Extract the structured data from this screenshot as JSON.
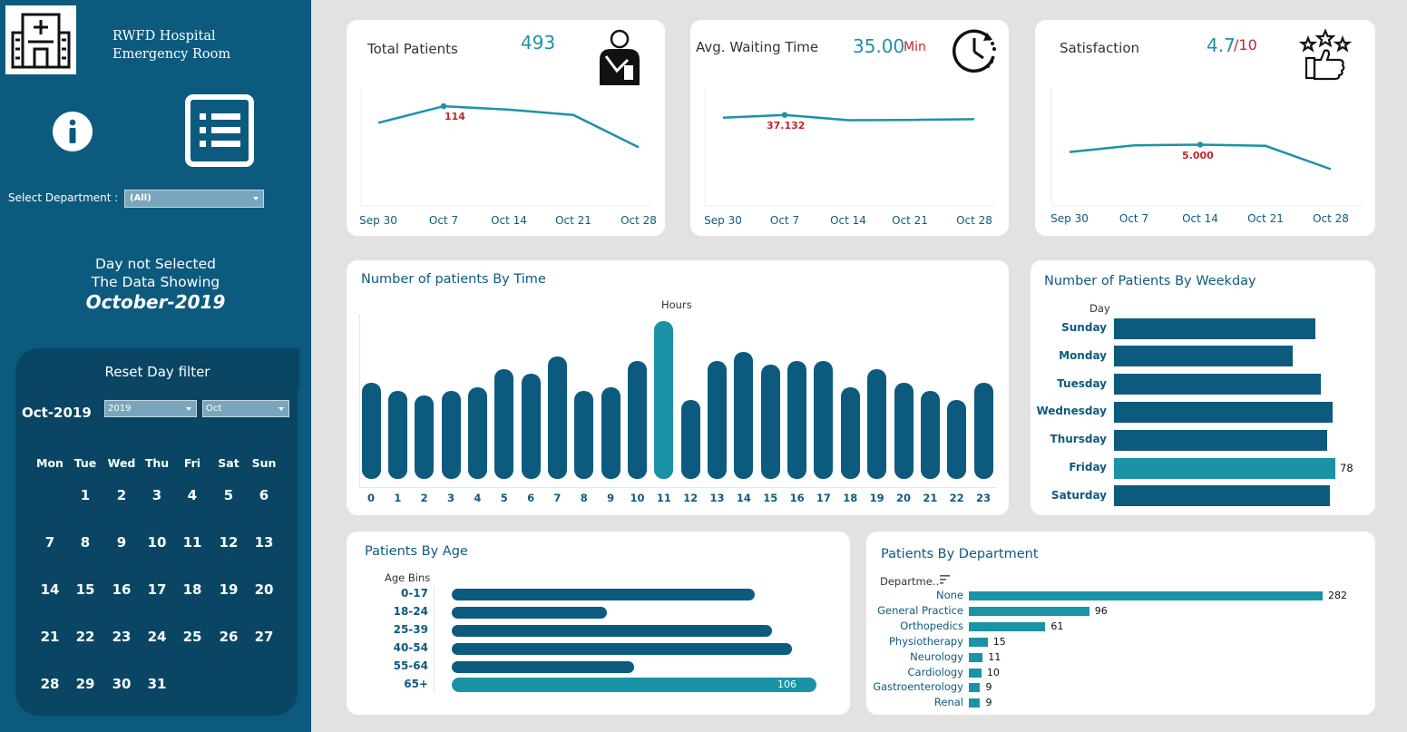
{
  "sidebar": {
    "hospital_name": "RWFD Hospital",
    "department_name": "Emergency Room",
    "select_department_label": "Select Department :",
    "select_department_value": "(All)",
    "msg_line1": "Day not Selected",
    "msg_line2": "The Data Showing",
    "msg_period": "October-2019",
    "calendar": {
      "reset_label": "Reset Day filter",
      "month_label": "Oct-2019",
      "year_select": "2019",
      "month_select": "Oct",
      "weekdays": [
        "Mon",
        "Tue",
        "Wed",
        "Thu",
        "Fri",
        "Sat",
        "Sun"
      ],
      "first_weekday_index": 1,
      "days_in_month": 31
    }
  },
  "kpis": [
    {
      "title": "Total Patients",
      "value": "493",
      "unit": "",
      "point_label": "114",
      "icon": "patient-icon"
    },
    {
      "title": "Avg. Waiting Time",
      "value": "35.00",
      "unit": "Min",
      "point_label": "37.132",
      "icon": "clock-icon"
    },
    {
      "title": "Satisfaction",
      "value": "4.7",
      "unit": "/10",
      "point_label": "5.000",
      "icon": "thumbs-up-stars-icon"
    }
  ],
  "kpi_axis": [
    "Sep 30",
    "Oct 7",
    "Oct 14",
    "Oct 21",
    "Oct 28"
  ],
  "chart_data": [
    {
      "type": "line",
      "title": "Total Patients",
      "x": [
        "Sep 30",
        "Oct 7",
        "Oct 14",
        "Oct 21",
        "Oct 28"
      ],
      "values": [
        95,
        114,
        110,
        104,
        67
      ],
      "ylim": [
        0,
        140
      ],
      "highlight_index": 1
    },
    {
      "type": "line",
      "title": "Avg. Waiting Time",
      "x": [
        "Sep 30",
        "Oct 7",
        "Oct 14",
        "Oct 21",
        "Oct 28"
      ],
      "values": [
        36.0,
        37.132,
        35.0,
        35.1,
        35.4
      ],
      "ylim": [
        0,
        50
      ],
      "highlight_index": 1
    },
    {
      "type": "line",
      "title": "Satisfaction",
      "x": [
        "Sep 30",
        "Oct 7",
        "Oct 14",
        "Oct 21",
        "Oct 28"
      ],
      "values": [
        4.4,
        4.95,
        5.0,
        4.9,
        3.0
      ],
      "ylim": [
        0,
        10
      ],
      "highlight_index": 2
    },
    {
      "type": "bar",
      "title": "Number of patients By Time",
      "xlabel": "Hours",
      "categories": [
        "0",
        "1",
        "2",
        "3",
        "4",
        "5",
        "6",
        "7",
        "8",
        "9",
        "10",
        "11",
        "12",
        "13",
        "14",
        "15",
        "16",
        "17",
        "18",
        "19",
        "20",
        "21",
        "22",
        "23"
      ],
      "values": [
        22,
        20,
        19,
        20,
        21,
        25,
        24,
        28,
        20,
        21,
        27,
        36,
        18,
        27,
        29,
        26,
        27,
        27,
        21,
        25,
        22,
        20,
        18,
        22
      ],
      "highlight_index": 11
    },
    {
      "type": "bar",
      "title": "Number of Patients By Weekday",
      "axis_title": "Day",
      "categories": [
        "Sunday",
        "Monday",
        "Tuesday",
        "Wednesday",
        "Thursday",
        "Friday",
        "Saturday"
      ],
      "values": [
        71,
        63,
        73,
        77,
        75,
        78,
        76
      ],
      "highlight_index": 5,
      "highlight_label": "78"
    },
    {
      "type": "bar",
      "title": "Patients By Age",
      "axis_title": "Age Bins",
      "categories": [
        "0-17",
        "18-24",
        "25-39",
        "40-54",
        "55-64",
        "65+"
      ],
      "values": [
        88,
        45,
        93,
        99,
        53,
        106
      ],
      "highlight_index": 5,
      "highlight_label": "106"
    },
    {
      "type": "bar",
      "title": "Patients By Department",
      "axis_title": "Departme..",
      "categories": [
        "None",
        "General Practice",
        "Orthopedics",
        "Physiotherapy",
        "Neurology",
        "Cardiology",
        "Gastroenterology",
        "Renal"
      ],
      "values": [
        282,
        96,
        61,
        15,
        11,
        10,
        9,
        9
      ]
    }
  ],
  "colors": {
    "sidebar": "#0d5a7f",
    "calendar_panel": "#0a4664",
    "bar_dark": "#0d5a7f",
    "bar_highlight": "#1a93a6",
    "accent_red": "#c0262c"
  }
}
